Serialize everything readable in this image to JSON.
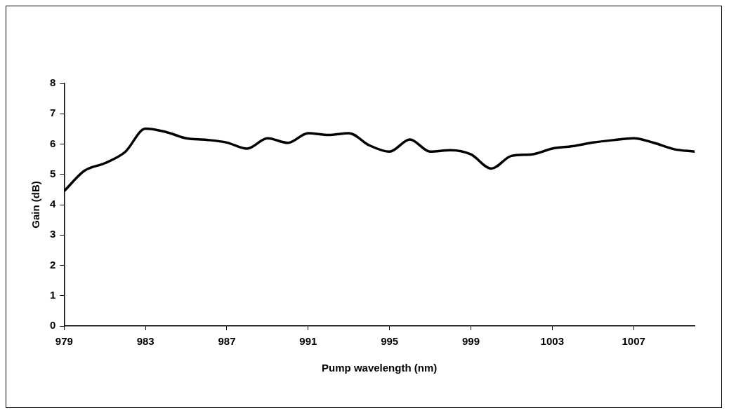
{
  "chart_data": {
    "type": "line",
    "xlabel": "Pump wavelength (nm)",
    "ylabel": "Gain (dB)",
    "x": [
      979,
      980,
      981,
      982,
      983,
      984,
      985,
      986,
      987,
      988,
      989,
      990,
      991,
      992,
      993,
      994,
      995,
      996,
      997,
      998,
      999,
      1000,
      1001,
      1002,
      1003,
      1004,
      1005,
      1006,
      1007,
      1008,
      1009,
      1010
    ],
    "series": [
      {
        "color": "#000000",
        "values": [
          4.45,
          5.12,
          5.37,
          5.74,
          6.51,
          6.4,
          6.19,
          6.14,
          6.05,
          5.85,
          6.19,
          6.04,
          6.36,
          6.3,
          6.36,
          5.96,
          5.75,
          6.15,
          5.75,
          5.8,
          5.66,
          5.19,
          5.61,
          5.66,
          5.85,
          5.93,
          6.05,
          6.13,
          6.19,
          6.04,
          5.83,
          5.75
        ]
      }
    ],
    "xlim": [
      979,
      1010
    ],
    "xticks": [
      979,
      983,
      987,
      991,
      995,
      999,
      1003,
      1007
    ],
    "ylim": [
      0,
      8
    ],
    "yticks": [
      0,
      1,
      2,
      3,
      4,
      5,
      6,
      7,
      8
    ],
    "grid": false,
    "legend": false,
    "marker": "none",
    "line_style": "solid"
  }
}
